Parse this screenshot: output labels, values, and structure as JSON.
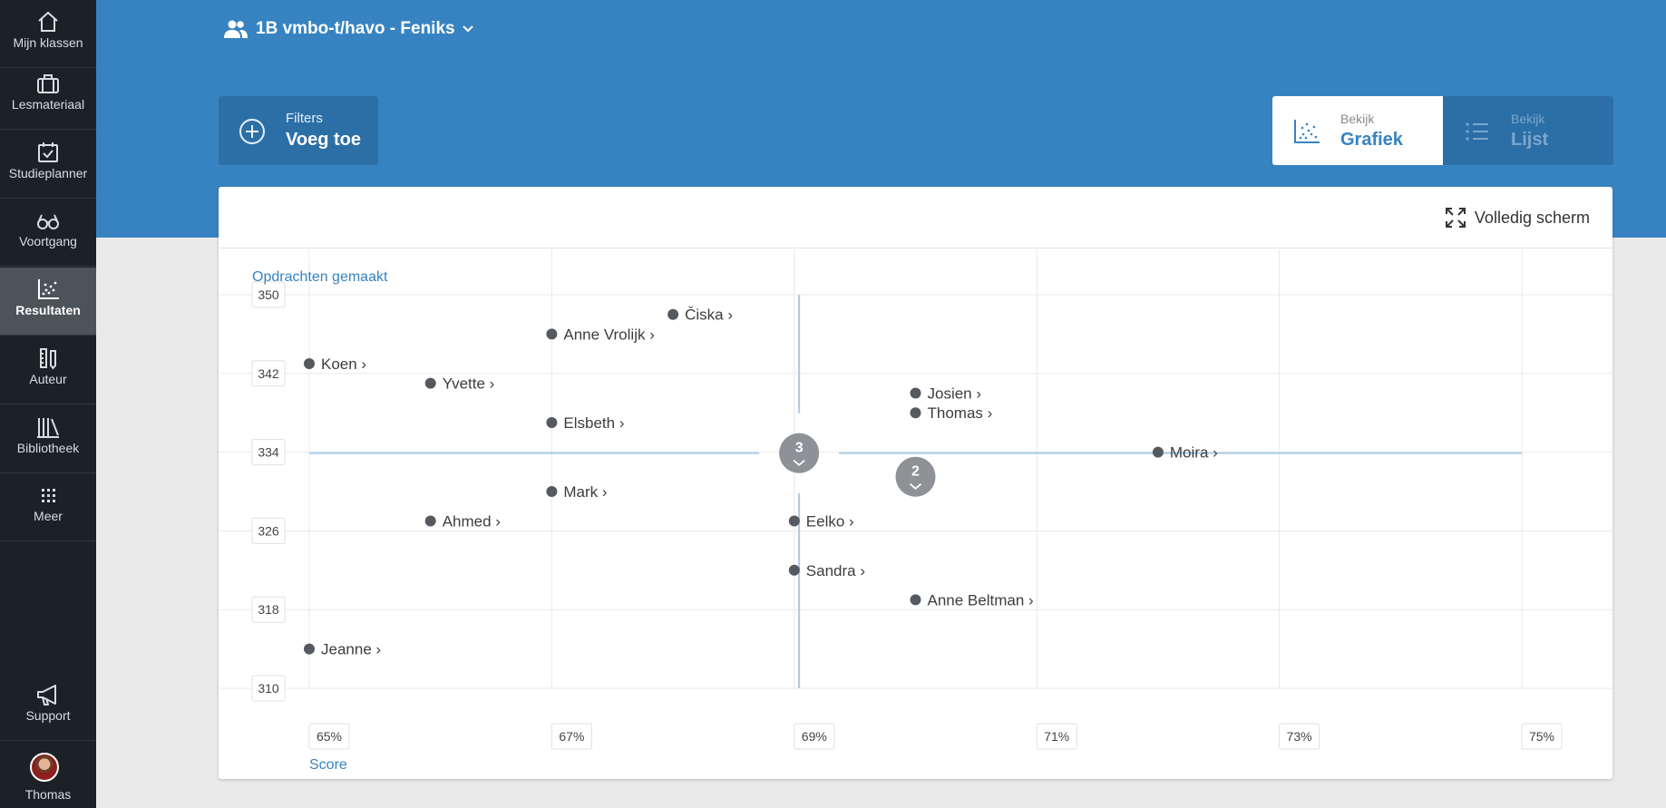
{
  "sidebar": {
    "items": [
      {
        "label": "Mijn klassen",
        "icon": "home-icon"
      },
      {
        "label": "Lesmateriaal",
        "icon": "briefcase-icon"
      },
      {
        "label": "Studieplanner",
        "icon": "calendar-check-icon"
      },
      {
        "label": "Voortgang",
        "icon": "glasses-icon"
      },
      {
        "label": "Resultaten",
        "icon": "scatter-chart-icon",
        "active": true
      },
      {
        "label": "Auteur",
        "icon": "ruler-pencil-icon"
      },
      {
        "label": "Bibliotheek",
        "icon": "books-icon"
      },
      {
        "label": "Meer",
        "icon": "grid-dots-icon"
      }
    ],
    "support": {
      "label": "Support",
      "icon": "megaphone-icon"
    },
    "user": {
      "label": "Thomas",
      "icon": "avatar"
    }
  },
  "header": {
    "class_name": "1B vmbo-t/havo - Feniks",
    "filters": {
      "small": "Filters",
      "big": "Voeg toe"
    },
    "view_graph": {
      "small": "Bekijk",
      "big": "Grafiek"
    },
    "view_list": {
      "small": "Bekijk",
      "big": "Lijst"
    }
  },
  "card": {
    "fullscreen_label": "Volledig scherm"
  },
  "colors": {
    "brand_blue": "#3783c1",
    "sidebar_bg": "#1c2126",
    "point": "#555a60",
    "cluster": "#8e9296",
    "median_line": "#a9cbe6"
  },
  "chart_data": {
    "type": "scatter",
    "ylabel": "Opdrachten gemaakt",
    "xlabel": "Score",
    "x_ticks": [
      "65%",
      "67%",
      "69%",
      "71%",
      "73%",
      "75%"
    ],
    "y_ticks": [
      "350",
      "342",
      "334",
      "326",
      "318",
      "310"
    ],
    "xlim": [
      65,
      75
    ],
    "ylim": [
      310,
      350
    ],
    "grid": true,
    "median": {
      "x": 69.04,
      "y": 333.9
    },
    "points": [
      {
        "name": "Čiska",
        "x": 68.0,
        "y": 348
      },
      {
        "name": "Anne Vrolijk",
        "x": 67.0,
        "y": 346
      },
      {
        "name": "Koen",
        "x": 65.0,
        "y": 343
      },
      {
        "name": "Yvette",
        "x": 66.0,
        "y": 341
      },
      {
        "name": "Josien",
        "x": 70.0,
        "y": 340
      },
      {
        "name": "Thomas",
        "x": 70.0,
        "y": 338
      },
      {
        "name": "Elsbeth",
        "x": 67.0,
        "y": 337
      },
      {
        "name": "Moira",
        "x": 72.0,
        "y": 334
      },
      {
        "name": "Mark",
        "x": 67.0,
        "y": 330
      },
      {
        "name": "Ahmed",
        "x": 66.0,
        "y": 327
      },
      {
        "name": "Eelko",
        "x": 69.0,
        "y": 327
      },
      {
        "name": "Sandra",
        "x": 69.0,
        "y": 322
      },
      {
        "name": "Anne Beltman",
        "x": 70.0,
        "y": 319
      },
      {
        "name": "Jeanne",
        "x": 65.0,
        "y": 314
      }
    ],
    "clusters": [
      {
        "count": "3",
        "x": 69.04,
        "y": 333.9
      },
      {
        "count": "2",
        "x": 70.0,
        "y": 331.5
      }
    ]
  }
}
